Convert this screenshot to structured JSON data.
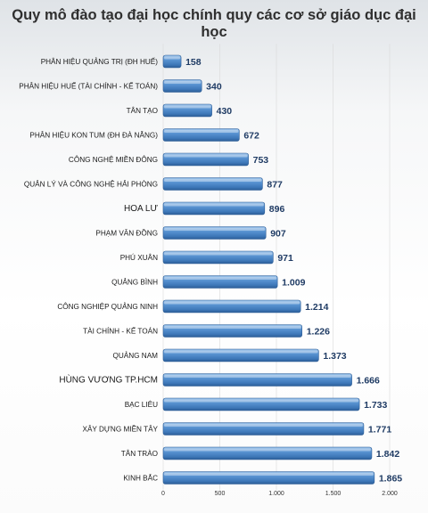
{
  "chart_data": {
    "type": "bar",
    "orientation": "horizontal",
    "title": "Quy mô đào tạo đại học chính quy các cơ sở giáo dục đại học",
    "categories": [
      "PHÂN HIỆU QUẢNG TRỊ (ĐH HUẾ)",
      "PHÂN HIỆU HUẾ (TÀI CHÍNH - KẾ TOÁN)",
      "TÂN TẠO",
      "PHÂN HIỆU KON TUM (ĐH ĐÀ NẴNG)",
      "CÔNG NGHỆ MIỀN ĐÔNG",
      "QUẢN LÝ VÀ CÔNG NGHỆ HẢI PHÒNG",
      "HOA LƯ",
      "PHẠM VĂN ĐỒNG",
      "PHÚ XUÂN",
      "QUẢNG BÌNH",
      "CÔNG NGHIỆP QUẢNG NINH",
      "TÀI CHÍNH - KẾ TOÁN",
      "QUẢNG NAM",
      "HÙNG VƯƠNG TP.HCM",
      "BẠC LIÊU",
      "XÂY DỰNG MIỀN TÂY",
      "TÂN TRÀO",
      "KINH BẮC"
    ],
    "values": [
      158,
      340,
      430,
      672,
      753,
      877,
      896,
      907,
      971,
      1009,
      1214,
      1226,
      1373,
      1666,
      1733,
      1771,
      1842,
      1865
    ],
    "value_labels": [
      "158",
      "340",
      "430",
      "672",
      "753",
      "877",
      "896",
      "907",
      "971",
      "1.009",
      "1.214",
      "1.226",
      "1.373",
      "1.666",
      "1.733",
      "1.771",
      "1.842",
      "1.865"
    ],
    "x_ticks": [
      0,
      500,
      1000,
      1500,
      2000
    ],
    "x_tick_labels": [
      "0",
      "500",
      "1.000",
      "1.500",
      "2.000"
    ],
    "xlim": [
      0,
      2000
    ],
    "grid": true,
    "legend": "none",
    "bar_color": "#4a86c8",
    "bar_edge_color": "#2d5d96",
    "value_label_color": "#1f3b64"
  }
}
